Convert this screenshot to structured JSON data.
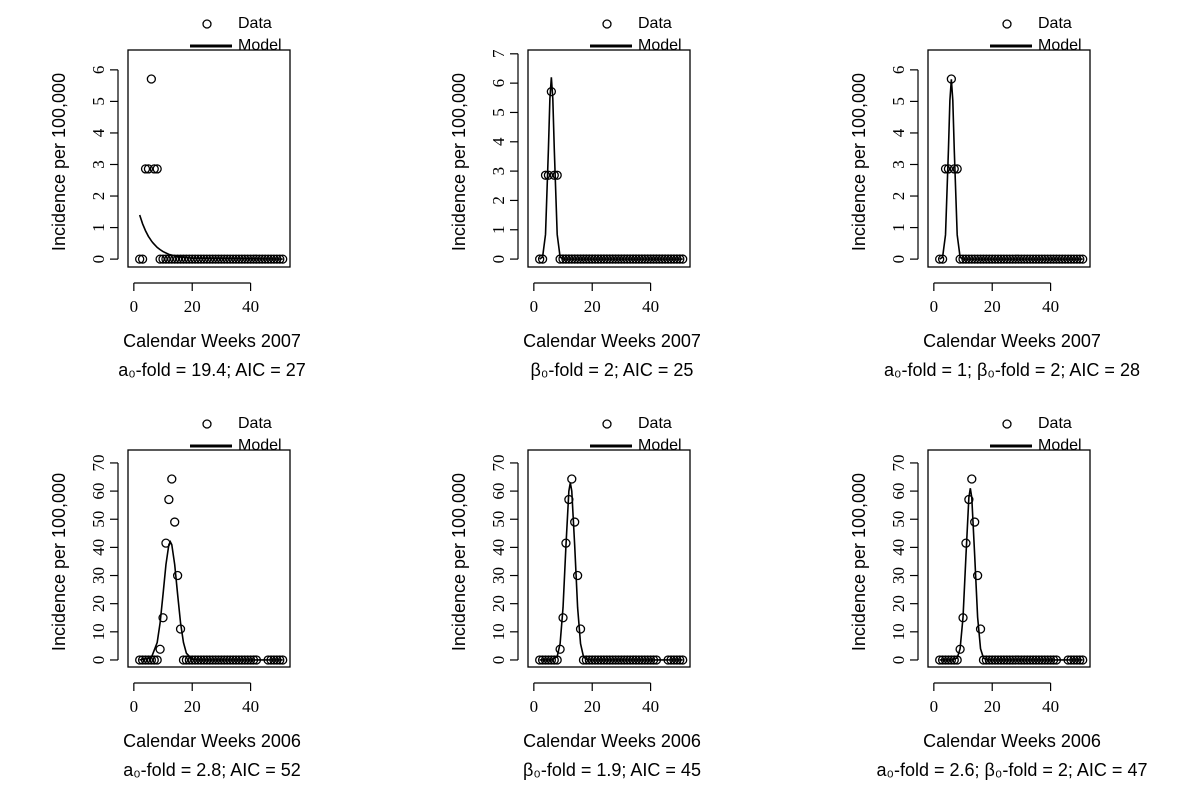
{
  "chart_data": [
    {
      "type": "scatter",
      "xlabel": "Calendar Weeks 2007",
      "ylabel": "Incidence per 100,000",
      "caption": "a₀-fold = 19.4; AIC = 27",
      "xlim": [
        -2,
        53.5
      ],
      "ylim": [
        -0.25,
        6.63
      ],
      "xticks": [
        0,
        20,
        40
      ],
      "yticks": [
        0,
        1,
        2,
        3,
        4,
        5,
        6
      ],
      "series": [
        {
          "name": "Data",
          "style": "points",
          "color": "#000000",
          "x": [
            2,
            3,
            4,
            5,
            6,
            7,
            8,
            9,
            10,
            11,
            12,
            13,
            14,
            15,
            16,
            17,
            18,
            19,
            20,
            21,
            22,
            23,
            24,
            25,
            26,
            27,
            28,
            29,
            30,
            31,
            32,
            33,
            34,
            35,
            36,
            37,
            38,
            39,
            40,
            41,
            42,
            43,
            44,
            45,
            46,
            47,
            48,
            49,
            50,
            51
          ],
          "values": [
            0,
            0,
            2.86,
            2.86,
            5.71,
            2.86,
            2.86,
            0,
            0,
            0,
            0,
            0,
            0,
            0,
            0,
            0,
            0,
            0,
            0,
            0,
            0,
            0,
            0,
            0,
            0,
            0,
            0,
            0,
            0,
            0,
            0,
            0,
            0,
            0,
            0,
            0,
            0,
            0,
            0,
            0,
            0,
            0,
            0,
            0,
            0,
            0,
            0,
            0,
            0,
            0
          ]
        },
        {
          "name": "Model",
          "style": "line",
          "color": "#000000",
          "x": [
            2,
            3,
            4,
            5,
            5.5,
            6,
            6.5,
            7,
            8,
            9,
            10,
            12,
            15,
            20,
            51
          ],
          "values": [
            1.4,
            1.12,
            0.9,
            0.72,
            0.65,
            0.58,
            0.52,
            0.47,
            0.37,
            0.3,
            0.24,
            0.15,
            0.08,
            0.03,
            0
          ]
        }
      ]
    },
    {
      "type": "scatter",
      "xlabel": "Calendar Weeks 2007",
      "ylabel": "Incidence per 100,000",
      "caption": "β₀-fold = 2; AIC = 25",
      "xlim": [
        -2,
        53.5
      ],
      "ylim": [
        -0.27,
        7.13
      ],
      "xticks": [
        0,
        20,
        40
      ],
      "yticks": [
        0,
        1,
        2,
        3,
        4,
        5,
        6,
        7
      ],
      "series": [
        {
          "name": "Data",
          "style": "points",
          "color": "#000000",
          "x": [
            2,
            3,
            4,
            5,
            6,
            7,
            8,
            9,
            10,
            11,
            12,
            13,
            14,
            15,
            16,
            17,
            18,
            19,
            20,
            21,
            22,
            23,
            24,
            25,
            26,
            27,
            28,
            29,
            30,
            31,
            32,
            33,
            34,
            35,
            36,
            37,
            38,
            39,
            40,
            41,
            42,
            43,
            44,
            45,
            46,
            47,
            48,
            49,
            50,
            51
          ],
          "values": [
            0,
            0,
            2.86,
            2.86,
            5.71,
            2.86,
            2.86,
            0,
            0,
            0,
            0,
            0,
            0,
            0,
            0,
            0,
            0,
            0,
            0,
            0,
            0,
            0,
            0,
            0,
            0,
            0,
            0,
            0,
            0,
            0,
            0,
            0,
            0,
            0,
            0,
            0,
            0,
            0,
            0,
            0,
            0,
            0,
            0,
            0,
            0,
            0,
            0,
            0,
            0,
            0
          ]
        },
        {
          "name": "Model",
          "style": "line",
          "color": "#000000",
          "x": [
            2,
            3,
            4,
            5,
            5.5,
            6,
            6.5,
            7,
            8,
            9,
            10,
            12,
            15,
            20,
            51
          ],
          "values": [
            0,
            0.07,
            0.84,
            3.76,
            5.47,
            6.2,
            5.47,
            3.76,
            0.84,
            0.07,
            0,
            0,
            0,
            0,
            0
          ]
        }
      ]
    },
    {
      "type": "scatter",
      "xlabel": "Calendar Weeks 2007",
      "ylabel": "Incidence per 100,000",
      "caption": "a₀-fold = 1; β₀-fold = 2; AIC = 28",
      "xlim": [
        -2,
        53.5
      ],
      "ylim": [
        -0.25,
        6.63
      ],
      "xticks": [
        0,
        20,
        40
      ],
      "yticks": [
        0,
        1,
        2,
        3,
        4,
        5,
        6
      ],
      "series": [
        {
          "name": "Data",
          "style": "points",
          "color": "#000000",
          "x": [
            2,
            3,
            4,
            5,
            6,
            7,
            8,
            9,
            10,
            11,
            12,
            13,
            14,
            15,
            16,
            17,
            18,
            19,
            20,
            21,
            22,
            23,
            24,
            25,
            26,
            27,
            28,
            29,
            30,
            31,
            32,
            33,
            34,
            35,
            36,
            37,
            38,
            39,
            40,
            41,
            42,
            43,
            44,
            45,
            46,
            47,
            48,
            49,
            50,
            51
          ],
          "values": [
            0,
            0,
            2.86,
            2.86,
            5.71,
            2.86,
            2.86,
            0,
            0,
            0,
            0,
            0,
            0,
            0,
            0,
            0,
            0,
            0,
            0,
            0,
            0,
            0,
            0,
            0,
            0,
            0,
            0,
            0,
            0,
            0,
            0,
            0,
            0,
            0,
            0,
            0,
            0,
            0,
            0,
            0,
            0,
            0,
            0,
            0,
            0,
            0,
            0,
            0,
            0,
            0
          ]
        },
        {
          "name": "Model",
          "style": "line",
          "color": "#000000",
          "x": [
            2,
            3,
            4,
            5,
            5.5,
            6,
            6.5,
            7,
            8,
            9,
            10,
            12,
            15,
            20,
            51
          ],
          "values": [
            0,
            0.06,
            0.77,
            3.46,
            5.03,
            5.7,
            5.03,
            3.46,
            0.77,
            0.06,
            0,
            0,
            0,
            0,
            0
          ]
        }
      ]
    },
    {
      "type": "scatter",
      "xlabel": "Calendar Weeks 2006",
      "ylabel": "Incidence per 100,000",
      "caption": "a₀-fold = 2.8; AIC = 52",
      "xlim": [
        -2,
        53.5
      ],
      "ylim": [
        -2.5,
        74.6
      ],
      "xticks": [
        0,
        20,
        40
      ],
      "yticks": [
        0,
        10,
        20,
        30,
        40,
        50,
        60,
        70
      ],
      "series": [
        {
          "name": "Data",
          "style": "points",
          "color": "#000000",
          "x": [
            2,
            3,
            4,
            5,
            6,
            7,
            8,
            9,
            10,
            11,
            12,
            13,
            14,
            15,
            16,
            17,
            18,
            19,
            20,
            21,
            22,
            23,
            24,
            25,
            26,
            27,
            28,
            29,
            30,
            31,
            32,
            33,
            34,
            35,
            36,
            37,
            38,
            39,
            40,
            41,
            42,
            46,
            47,
            48,
            49,
            50,
            51
          ],
          "values": [
            0,
            0,
            0,
            0,
            0,
            0,
            0,
            3.8,
            15,
            41.5,
            57,
            64.3,
            49,
            30,
            11,
            0,
            0,
            0,
            0,
            0,
            0,
            0,
            0,
            0,
            0,
            0,
            0,
            0,
            0,
            0,
            0,
            0,
            0,
            0,
            0,
            0,
            0,
            0,
            0,
            0,
            0,
            0,
            0,
            0,
            0,
            0,
            0
          ]
        },
        {
          "name": "Model",
          "style": "line",
          "color": "#000000",
          "x": [
            2,
            6,
            8,
            9,
            10,
            11,
            12,
            12.5,
            13,
            14,
            15,
            16,
            17,
            18,
            20,
            22,
            25,
            51
          ],
          "values": [
            0,
            0.8,
            6.2,
            13.2,
            23.3,
            33.9,
            41,
            42,
            41,
            33.9,
            23.3,
            13.2,
            6.2,
            2.4,
            0.2,
            0,
            0,
            0
          ]
        }
      ]
    },
    {
      "type": "scatter",
      "xlabel": "Calendar Weeks 2006",
      "ylabel": "Incidence per 100,000",
      "caption": "β₀-fold = 1.9; AIC = 45",
      "xlim": [
        -2,
        53.5
      ],
      "ylim": [
        -2.5,
        74.6
      ],
      "xticks": [
        0,
        20,
        40
      ],
      "yticks": [
        0,
        10,
        20,
        30,
        40,
        50,
        60,
        70
      ],
      "series": [
        {
          "name": "Data",
          "style": "points",
          "color": "#000000",
          "x": [
            2,
            3,
            4,
            5,
            6,
            7,
            8,
            9,
            10,
            11,
            12,
            13,
            14,
            15,
            16,
            17,
            18,
            19,
            20,
            21,
            22,
            23,
            24,
            25,
            26,
            27,
            28,
            29,
            30,
            31,
            32,
            33,
            34,
            35,
            36,
            37,
            38,
            39,
            40,
            41,
            42,
            46,
            47,
            48,
            49,
            50,
            51
          ],
          "values": [
            0,
            0,
            0,
            0,
            0,
            0,
            0,
            3.8,
            15,
            41.5,
            57,
            64.3,
            49,
            30,
            11,
            0,
            0,
            0,
            0,
            0,
            0,
            0,
            0,
            0,
            0,
            0,
            0,
            0,
            0,
            0,
            0,
            0,
            0,
            0,
            0,
            0,
            0,
            0,
            0,
            0,
            0,
            0,
            0,
            0,
            0,
            0,
            0
          ]
        },
        {
          "name": "Model",
          "style": "line",
          "color": "#000000",
          "x": [
            2,
            6,
            8,
            9,
            10,
            11,
            12,
            12.5,
            13,
            14,
            15,
            16,
            17,
            18,
            20,
            22,
            25,
            51
          ],
          "values": [
            0,
            0,
            1.2,
            5.8,
            18.6,
            40.6,
            60,
            63,
            60,
            40.6,
            18.6,
            5.8,
            1.2,
            0.2,
            0,
            0,
            0,
            0
          ]
        }
      ]
    },
    {
      "type": "scatter",
      "xlabel": "Calendar Weeks 2006",
      "ylabel": "Incidence per 100,000",
      "caption": "a₀-fold = 2.6; β₀-fold = 2; AIC = 47",
      "xlim": [
        -2,
        53.5
      ],
      "ylim": [
        -2.5,
        74.6
      ],
      "xticks": [
        0,
        20,
        40
      ],
      "yticks": [
        0,
        10,
        20,
        30,
        40,
        50,
        60,
        70
      ],
      "series": [
        {
          "name": "Data",
          "style": "points",
          "color": "#000000",
          "x": [
            2,
            3,
            4,
            5,
            6,
            7,
            8,
            9,
            10,
            11,
            12,
            13,
            14,
            15,
            16,
            17,
            18,
            19,
            20,
            21,
            22,
            23,
            24,
            25,
            26,
            27,
            28,
            29,
            30,
            31,
            32,
            33,
            34,
            35,
            36,
            37,
            38,
            39,
            40,
            41,
            42,
            46,
            47,
            48,
            49,
            50,
            51
          ],
          "values": [
            0,
            0,
            0,
            0,
            0,
            0,
            0,
            3.8,
            15,
            41.5,
            57,
            64.3,
            49,
            30,
            11,
            0,
            0,
            0,
            0,
            0,
            0,
            0,
            0,
            0,
            0,
            0,
            0,
            0,
            0,
            0,
            0,
            0,
            0,
            0,
            0,
            0,
            0,
            0,
            0,
            0,
            0,
            0,
            0,
            0,
            0,
            0,
            0
          ]
        },
        {
          "name": "Model",
          "style": "line",
          "color": "#000000",
          "x": [
            2,
            6,
            8,
            9,
            10,
            11,
            12,
            12.5,
            13,
            14,
            15,
            16,
            17,
            18,
            20,
            22,
            25,
            51
          ],
          "values": [
            0,
            0,
            0.7,
            4,
            15.2,
            37,
            57.7,
            61,
            57.7,
            37,
            15.2,
            4,
            0.7,
            0.1,
            0,
            0,
            0,
            0
          ]
        }
      ]
    }
  ]
}
